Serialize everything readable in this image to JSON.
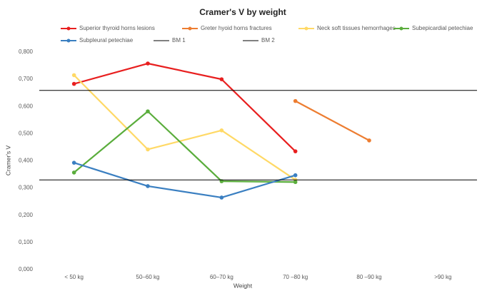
{
  "chart_data": {
    "type": "line",
    "title": "Cramer's V by weight",
    "x_label": "Weight",
    "y_label": "Cramer's V",
    "categories": [
      "< 50 kg",
      "50–60 kg",
      "60–70 kg",
      "70 –80 kg",
      "80 –90 kg",
      ">90 kg"
    ],
    "series": [
      {
        "name": "Superior thyroid horns lesions",
        "color": "#e81f1f",
        "values": [
          0.683,
          0.758,
          0.7,
          0.435,
          null,
          null
        ]
      },
      {
        "name": "Greter hyoid horns fractures",
        "color": "#ed7d31",
        "values": [
          null,
          null,
          null,
          0.62,
          0.475,
          null
        ]
      },
      {
        "name": "Neck soft tissues hemorrhages",
        "color": "#ffd966",
        "values": [
          0.715,
          0.442,
          0.512,
          0.33,
          null,
          null
        ]
      },
      {
        "name": "Subepicardial petechiae",
        "color": "#5aad3c",
        "values": [
          0.357,
          0.582,
          0.325,
          0.322,
          null,
          null
        ]
      },
      {
        "name": "Subpleural petechiae",
        "color": "#3a7fc1",
        "values": [
          0.393,
          0.307,
          0.265,
          0.347,
          null,
          null
        ]
      },
      {
        "name": "BM 1",
        "color": "#000000",
        "value": 0.659
      },
      {
        "name": "BM 2",
        "color": "#000000",
        "value": 0.33
      }
    ],
    "ylim": [
      0,
      0.8
    ],
    "yticks": [
      {
        "value": 0,
        "label": "0,000"
      },
      {
        "value": 0.1,
        "label": "0,100"
      },
      {
        "value": 0.2,
        "label": "0,200"
      },
      {
        "value": 0.3,
        "label": "0,300"
      },
      {
        "value": 0.4,
        "label": "0,400"
      },
      {
        "value": 0.5,
        "label": "0,500"
      },
      {
        "value": 0.6,
        "label": "0,600"
      },
      {
        "value": 0.7,
        "label": "0,700"
      },
      {
        "value": 0.8,
        "label": "0,800"
      }
    ],
    "grid": false
  }
}
